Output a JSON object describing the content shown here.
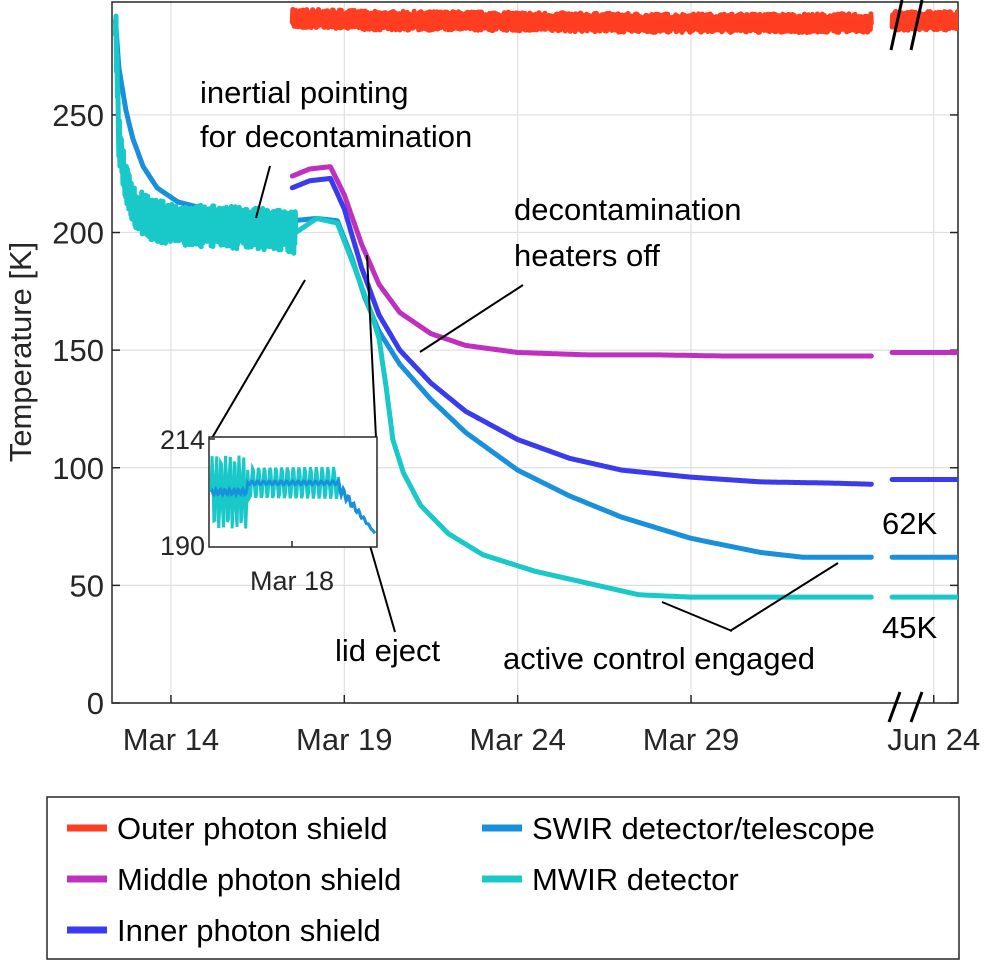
{
  "chart_data": {
    "type": "line",
    "title": "",
    "xlabel": "",
    "ylabel": "Temperature [K]",
    "xlim": [
      12.3,
      36.7
    ],
    "ylim": [
      0,
      298
    ],
    "x_unit": "days since Mar 0 (compressed axis break before Jun 24)",
    "x_ticks": [
      {
        "x": 14,
        "label": "Mar 14"
      },
      {
        "x": 19,
        "label": "Mar 19"
      },
      {
        "x": 24,
        "label": "Mar 24"
      },
      {
        "x": 29,
        "label": "Mar 29"
      },
      {
        "x": 36,
        "label": "Jun 24"
      }
    ],
    "y_ticks": [
      0,
      50,
      100,
      150,
      200,
      250
    ],
    "axis_break": "//",
    "grid": true,
    "series": [
      {
        "name": "Outer photon shield",
        "color": "#ff3d20",
        "noise": 4,
        "segments": [
          [
            [
              17.5,
              291
            ],
            [
              18.5,
              291
            ],
            [
              20,
              290
            ],
            [
              22,
              290
            ],
            [
              25,
              289.5
            ],
            [
              28,
              289
            ],
            [
              31,
              289
            ],
            [
              33,
              289
            ],
            [
              34.2,
              289
            ]
          ],
          [
            [
              34.8,
              290
            ],
            [
              35.5,
              290
            ],
            [
              36.1,
              290
            ],
            [
              36.7,
              290
            ]
          ]
        ]
      },
      {
        "name": "Middle photon shield",
        "color": "#c030c0",
        "noise": 0,
        "segments": [
          [
            [
              17.5,
              224
            ],
            [
              18.0,
              227
            ],
            [
              18.6,
              228
            ],
            [
              19.0,
              216
            ],
            [
              19.5,
              195
            ],
            [
              20.0,
              178
            ],
            [
              20.6,
              166
            ],
            [
              21.5,
              157
            ],
            [
              22.5,
              152
            ],
            [
              24,
              149
            ],
            [
              26,
              148
            ],
            [
              28,
              148
            ],
            [
              30,
              147.5
            ],
            [
              32,
              147.5
            ],
            [
              34.2,
              147.5
            ]
          ],
          [
            [
              34.8,
              149
            ],
            [
              35.5,
              149
            ],
            [
              36.1,
              149
            ],
            [
              36.7,
              149
            ]
          ]
        ]
      },
      {
        "name": "Inner photon shield",
        "color": "#3a3aee",
        "noise": 0,
        "segments": [
          [
            [
              17.5,
              219
            ],
            [
              18.0,
              222
            ],
            [
              18.6,
              223
            ],
            [
              19.0,
              210
            ],
            [
              19.5,
              185
            ],
            [
              20.0,
              165
            ],
            [
              20.6,
              150
            ],
            [
              21.5,
              136
            ],
            [
              22.5,
              124
            ],
            [
              24,
              112
            ],
            [
              25.5,
              104
            ],
            [
              27,
              99
            ],
            [
              29,
              96
            ],
            [
              31,
              94
            ],
            [
              33,
              93.5
            ],
            [
              34.2,
              93
            ]
          ],
          [
            [
              34.8,
              95
            ],
            [
              35.5,
              95
            ],
            [
              36.1,
              95
            ],
            [
              36.7,
              95
            ]
          ]
        ]
      },
      {
        "name": "SWIR detector/telescope",
        "color": "#1890dc",
        "noise": 0,
        "segments": [
          [
            [
              12.4,
              290
            ],
            [
              12.5,
              270
            ],
            [
              12.7,
              252
            ],
            [
              12.9,
              240
            ],
            [
              13.2,
              228
            ],
            [
              13.6,
              219
            ],
            [
              14.2,
              213
            ],
            [
              15,
              210
            ],
            [
              16,
              207
            ],
            [
              17,
              206
            ],
            [
              17.5,
              205
            ],
            [
              18.2,
              206
            ],
            [
              18.8,
              205
            ],
            [
              19.2,
              190
            ],
            [
              19.6,
              172
            ],
            [
              20.0,
              158
            ],
            [
              20.6,
              144
            ],
            [
              21.5,
              129
            ],
            [
              22.5,
              115
            ],
            [
              24,
              99
            ],
            [
              25.5,
              88
            ],
            [
              27,
              79
            ],
            [
              29,
              70
            ],
            [
              31,
              64
            ],
            [
              32.2,
              62
            ],
            [
              34.2,
              62
            ]
          ],
          [
            [
              34.8,
              62
            ],
            [
              35.5,
              62
            ],
            [
              36.1,
              62
            ],
            [
              36.7,
              62
            ]
          ]
        ]
      },
      {
        "name": "MWIR detector",
        "color": "#19c8c8",
        "noise": 9,
        "noise_until": 17.6,
        "segments": [
          [
            [
              12.4,
              292
            ],
            [
              12.5,
              240
            ],
            [
              12.7,
              220
            ],
            [
              13,
              210
            ],
            [
              13.5,
              205
            ],
            [
              14.5,
              203
            ],
            [
              16,
              202
            ],
            [
              17,
              201
            ],
            [
              17.6,
              200
            ],
            [
              18.2,
              206
            ],
            [
              18.8,
              204
            ],
            [
              19.3,
              185
            ],
            [
              19.8,
              165
            ],
            [
              20.0,
              155
            ],
            [
              20.2,
              135
            ],
            [
              20.4,
              112
            ],
            [
              20.7,
              98
            ],
            [
              21.2,
              84
            ],
            [
              22,
              72
            ],
            [
              23,
              63
            ],
            [
              24.5,
              56
            ],
            [
              26,
              51
            ],
            [
              27.5,
              46
            ],
            [
              29,
              45
            ],
            [
              31,
              45
            ],
            [
              34.2,
              45
            ]
          ],
          [
            [
              34.8,
              45
            ],
            [
              35.5,
              45
            ],
            [
              36.1,
              45
            ],
            [
              36.7,
              45
            ]
          ]
        ]
      }
    ],
    "annotations": [
      {
        "lines": [
          "inertial pointing",
          "for decontamination"
        ]
      },
      {
        "lines": [
          "decontamination",
          "heaters off"
        ]
      },
      {
        "lines": [
          "lid eject"
        ]
      },
      {
        "lines": [
          "active control engaged"
        ]
      },
      {
        "lines": [
          "62K"
        ],
        "color": "#1890dc"
      },
      {
        "lines": [
          "45K"
        ],
        "color": "#19c8c8"
      }
    ],
    "inset": {
      "y_ticks": [
        "214",
        "190"
      ],
      "x_label": "Mar 18",
      "ylim": [
        190,
        214
      ]
    },
    "legend": {
      "placement": "bottom",
      "entries": [
        "Outer photon shield",
        "Middle photon shield",
        "Inner photon shield",
        "SWIR detector/telescope",
        "MWIR detector"
      ]
    }
  }
}
